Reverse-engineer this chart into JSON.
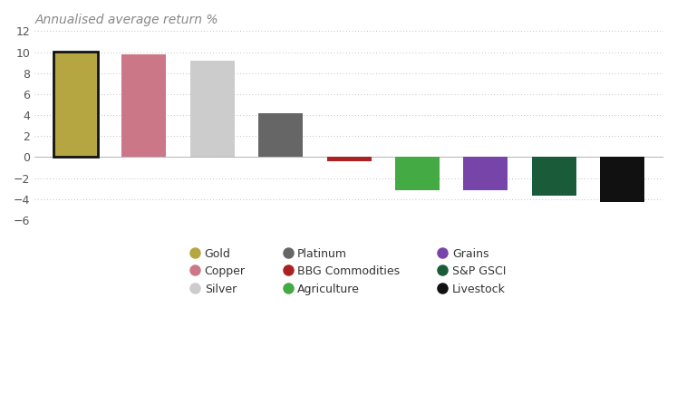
{
  "title": "Annualised average return %",
  "categories": [
    "Gold",
    "Copper",
    "Silver",
    "Platinum",
    "BBG Commodities",
    "Agriculture",
    "Grains",
    "S&P GSCI",
    "Livestock"
  ],
  "values": [
    10.05,
    9.8,
    9.2,
    4.2,
    -0.4,
    -3.2,
    -3.2,
    -3.7,
    -4.3
  ],
  "bar_colors": [
    "#b5a642",
    "#cc7788",
    "#cccccc",
    "#666666",
    "#aa2222",
    "#44aa44",
    "#7744aa",
    "#1a5c3a",
    "#111111"
  ],
  "bar_edgecolors": [
    "#111111",
    "none",
    "none",
    "none",
    "none",
    "none",
    "none",
    "none",
    "none"
  ],
  "bar_linewidths": [
    2.0,
    0,
    0,
    0,
    0,
    0,
    0,
    0,
    0
  ],
  "ylim": [
    -6,
    12
  ],
  "yticks": [
    -6,
    -4,
    -2,
    0,
    2,
    4,
    6,
    8,
    10,
    12
  ],
  "title_fontsize": 10,
  "legend_items": [
    {
      "label": "Gold",
      "color": "#b5a642",
      "row": 0,
      "col": 0
    },
    {
      "label": "Copper",
      "color": "#cc7788",
      "row": 0,
      "col": 1
    },
    {
      "label": "Silver",
      "color": "#cccccc",
      "row": 0,
      "col": 2
    },
    {
      "label": "Platinum",
      "color": "#666666",
      "row": 1,
      "col": 0
    },
    {
      "label": "BBG Commodities",
      "color": "#aa2222",
      "row": 1,
      "col": 1
    },
    {
      "label": "Agriculture",
      "color": "#44aa44",
      "row": 1,
      "col": 2
    },
    {
      "label": "Grains",
      "color": "#7744aa",
      "row": 2,
      "col": 0
    },
    {
      "label": "S&P GSCI",
      "color": "#1a5c3a",
      "row": 2,
      "col": 1
    },
    {
      "label": "Livestock",
      "color": "#111111",
      "row": 2,
      "col": 2
    }
  ],
  "background_color": "#ffffff",
  "grid_color": "#aaaaaa"
}
